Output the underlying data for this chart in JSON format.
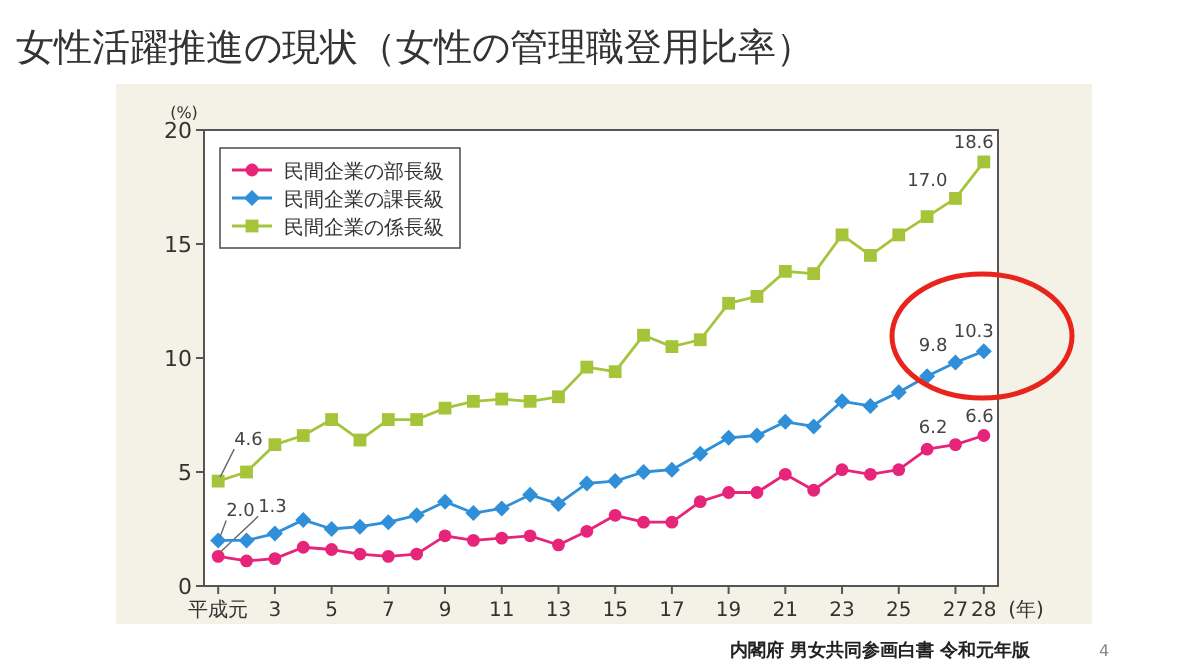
{
  "chart_data": {
    "type": "line",
    "title": "女性活躍推進の現状（女性の管理職登用比率）",
    "ylabel": "(%)",
    "xlabel": "(年)",
    "x": [
      1,
      2,
      3,
      4,
      5,
      6,
      7,
      8,
      9,
      10,
      11,
      12,
      13,
      14,
      15,
      16,
      17,
      18,
      19,
      20,
      21,
      22,
      23,
      24,
      25,
      26,
      27,
      28
    ],
    "xlim": [
      0.5,
      28.5
    ],
    "xticks": [
      {
        "value": 1,
        "label": "平成元"
      },
      3,
      5,
      7,
      9,
      11,
      13,
      15,
      17,
      19,
      21,
      23,
      25,
      27,
      28
    ],
    "ylim": [
      0,
      20
    ],
    "yticks": [
      0,
      5,
      10,
      15,
      20
    ],
    "grid": false,
    "legend": "top left",
    "series": [
      {
        "name": "民間企業の部長級",
        "color": "#e6247a",
        "marker": "circle",
        "values": [
          1.3,
          1.1,
          1.2,
          1.7,
          1.6,
          1.4,
          1.3,
          1.4,
          2.2,
          2.0,
          2.1,
          2.2,
          1.8,
          2.4,
          3.1,
          2.8,
          2.8,
          3.7,
          4.1,
          4.1,
          4.9,
          4.2,
          5.1,
          4.9,
          5.1,
          6.0,
          6.2,
          6.6
        ],
        "value_labels": [
          "1.3",
          null,
          null,
          null,
          null,
          null,
          null,
          null,
          null,
          null,
          null,
          null,
          null,
          null,
          null,
          null,
          null,
          null,
          null,
          null,
          null,
          null,
          null,
          null,
          null,
          null,
          "6.2",
          "6.6"
        ]
      },
      {
        "name": "民間企業の課長級",
        "color": "#2f8fd8",
        "marker": "diamond",
        "values": [
          2.0,
          2.0,
          2.3,
          2.9,
          2.5,
          2.6,
          2.8,
          3.1,
          3.7,
          3.2,
          3.4,
          4.0,
          3.6,
          4.5,
          4.6,
          5.0,
          5.1,
          5.8,
          6.5,
          6.6,
          7.2,
          7.0,
          8.1,
          7.9,
          8.5,
          9.2,
          9.8,
          10.3
        ],
        "value_labels": [
          "2.0",
          null,
          null,
          null,
          null,
          null,
          null,
          null,
          null,
          null,
          null,
          null,
          null,
          null,
          null,
          null,
          null,
          null,
          null,
          null,
          null,
          null,
          null,
          null,
          null,
          null,
          "9.8",
          "10.3"
        ]
      },
      {
        "name": "民間企業の係長級",
        "color": "#a6c43a",
        "marker": "square",
        "values": [
          4.6,
          5.0,
          6.2,
          6.6,
          7.3,
          6.4,
          7.3,
          7.3,
          7.8,
          8.1,
          8.2,
          8.1,
          8.3,
          9.6,
          9.4,
          11.0,
          10.5,
          10.8,
          12.4,
          12.7,
          13.8,
          13.7,
          15.4,
          14.5,
          15.4,
          16.2,
          17.0,
          18.6
        ],
        "value_labels": [
          "4.6",
          null,
          null,
          null,
          null,
          null,
          null,
          null,
          null,
          null,
          null,
          null,
          null,
          null,
          null,
          null,
          null,
          null,
          null,
          null,
          null,
          null,
          null,
          null,
          null,
          null,
          "17.0",
          "18.6"
        ]
      }
    ],
    "annotations": [
      "内閣府 男女共同参画白書 令和元年版",
      "4"
    ]
  }
}
